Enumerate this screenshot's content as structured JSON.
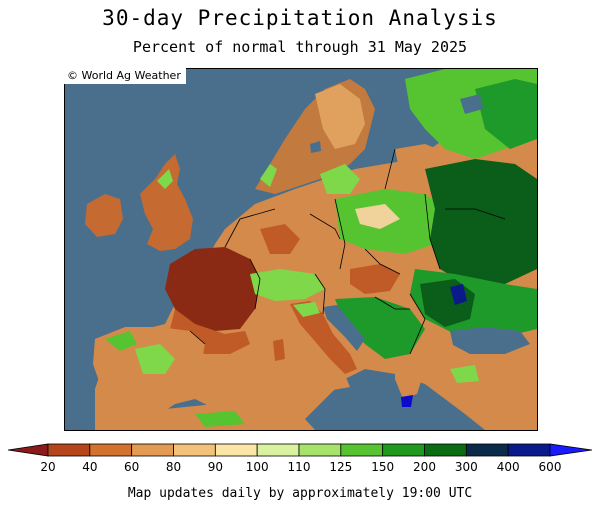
{
  "title": "30-day Precipitation Analysis",
  "subtitle": "Percent of normal through 31 May 2025",
  "credit": "© World Ag Weather",
  "footer": "Map updates daily by approximately 19:00 UTC",
  "legend": {
    "colors": [
      "#8b1a1a",
      "#b5451b",
      "#d2722e",
      "#e39a52",
      "#f2c27a",
      "#fce6a6",
      "#d9f2a0",
      "#a6e36b",
      "#56c431",
      "#1f9a1f",
      "#0b6b12",
      "#0a2a4a",
      "#0a1a8a",
      "#0b0bc9",
      "#1a1aff"
    ],
    "ticks": [
      "20",
      "40",
      "60",
      "80",
      "90",
      "100",
      "110",
      "125",
      "150",
      "200",
      "300",
      "400",
      "600"
    ]
  },
  "palette": {
    "sea": "#4a6f8c",
    "very_dry": "#8b2a14",
    "dry": "#c05a26",
    "moderately_dry": "#d48a4a",
    "near_normal": "#efd39a",
    "wet": "#7fd84a",
    "very_wet": "#1e9a2a",
    "extremely_wet": "#0b5d1a"
  }
}
